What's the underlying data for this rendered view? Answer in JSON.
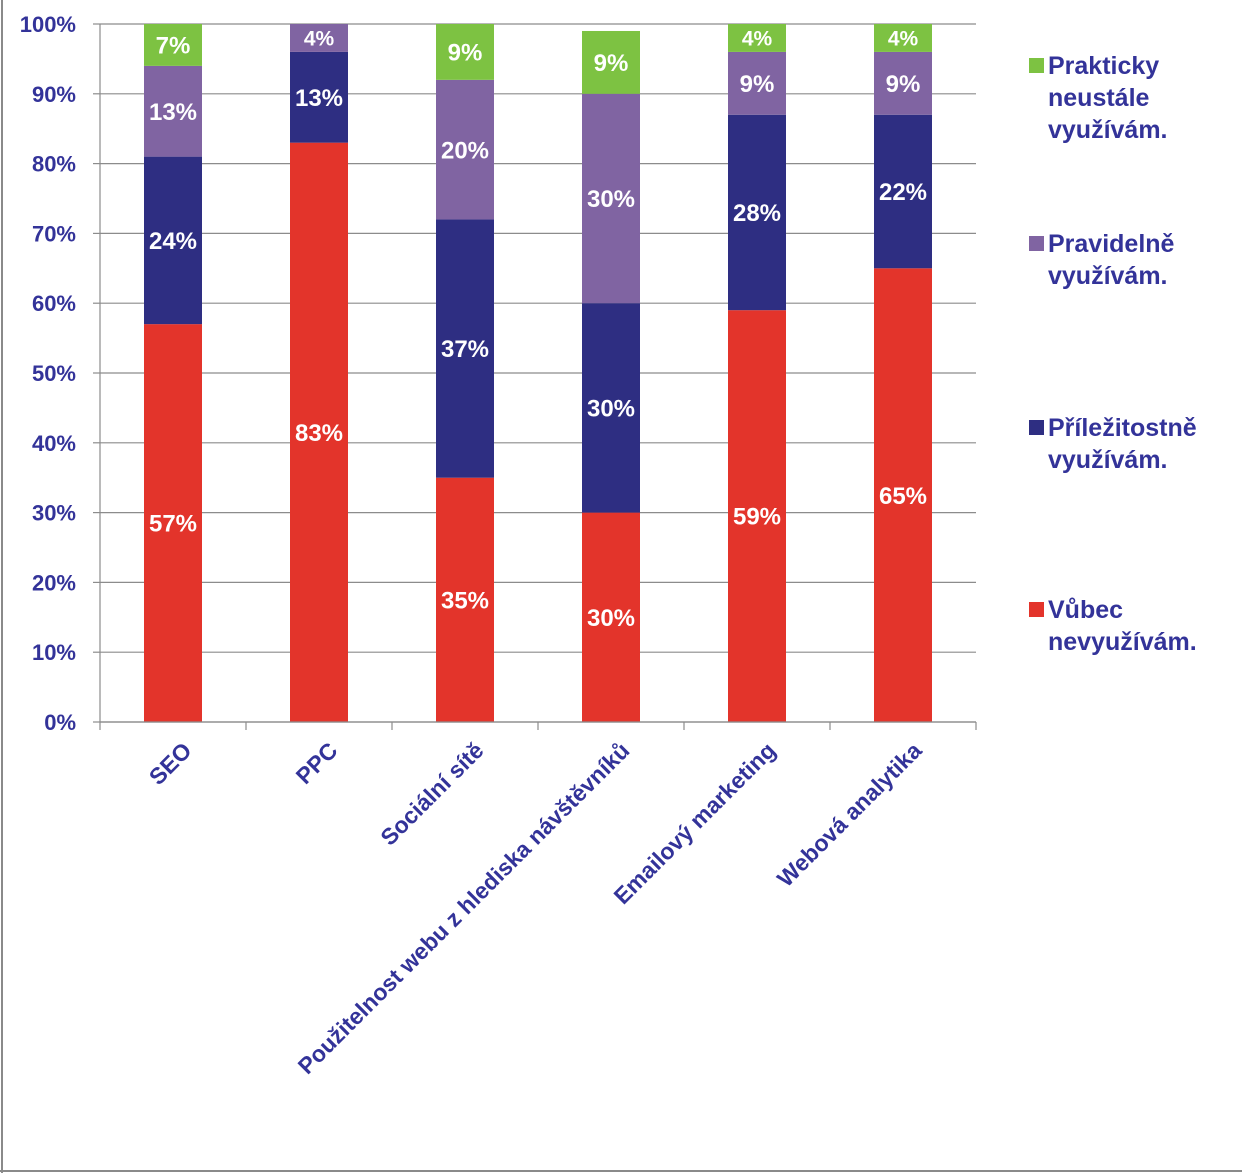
{
  "chart_data": {
    "type": "bar",
    "stacked": true,
    "orientation": "vertical",
    "categories": [
      "SEO",
      "PPC",
      "Sociální sítě",
      "Použitelnost webu z hlediska návštěvníků",
      "Emailový marketing",
      "Webová analytika"
    ],
    "series": [
      {
        "name": "Vůbec nevyužívám.",
        "color": "#e3342b",
        "values": [
          57,
          83,
          35,
          30,
          59,
          65
        ]
      },
      {
        "name": "Příležitostně využívám.",
        "color": "#2e2e82",
        "values": [
          24,
          13,
          37,
          30,
          28,
          22
        ]
      },
      {
        "name": "Pravidelně využívám.",
        "color": "#8064a2",
        "values": [
          13,
          4,
          20,
          30,
          9,
          9
        ]
      },
      {
        "name": "Prakticky neustále využívám.",
        "color": "#7dc242",
        "values": [
          7,
          0,
          9,
          9,
          4,
          4
        ]
      }
    ],
    "data_labels": [
      [
        "57%",
        "83%",
        "35%",
        "30%",
        "59%",
        "65%"
      ],
      [
        "24%",
        "13%",
        "37%",
        "30%",
        "28%",
        "22%"
      ],
      [
        "13%",
        "4%",
        "20%",
        "30%",
        "9%",
        "9%"
      ],
      [
        "7%",
        "",
        "9%",
        "9%",
        "4%",
        "4%"
      ]
    ],
    "y_ticks": [
      "0%",
      "10%",
      "20%",
      "30%",
      "40%",
      "50%",
      "60%",
      "70%",
      "80%",
      "90%",
      "100%"
    ],
    "ylim": [
      0,
      100
    ],
    "grid": true,
    "legend": {
      "position": "right",
      "order": [
        "Prakticky neustále využívám.",
        "Pravidelně využívám.",
        "Příležitostně využívám.",
        "Vůbec nevyužívám."
      ],
      "items": [
        {
          "lines": [
            "Prakticky",
            "neustále",
            "využívám."
          ],
          "color": "#7dc242"
        },
        {
          "lines": [
            "Pravidelně",
            "využívám."
          ],
          "color": "#8064a2"
        },
        {
          "lines": [
            "Příležitostně",
            "využívám."
          ],
          "color": "#2e2e82"
        },
        {
          "lines": [
            "Vůbec",
            "nevyužívám."
          ],
          "color": "#e3342b"
        }
      ]
    }
  }
}
